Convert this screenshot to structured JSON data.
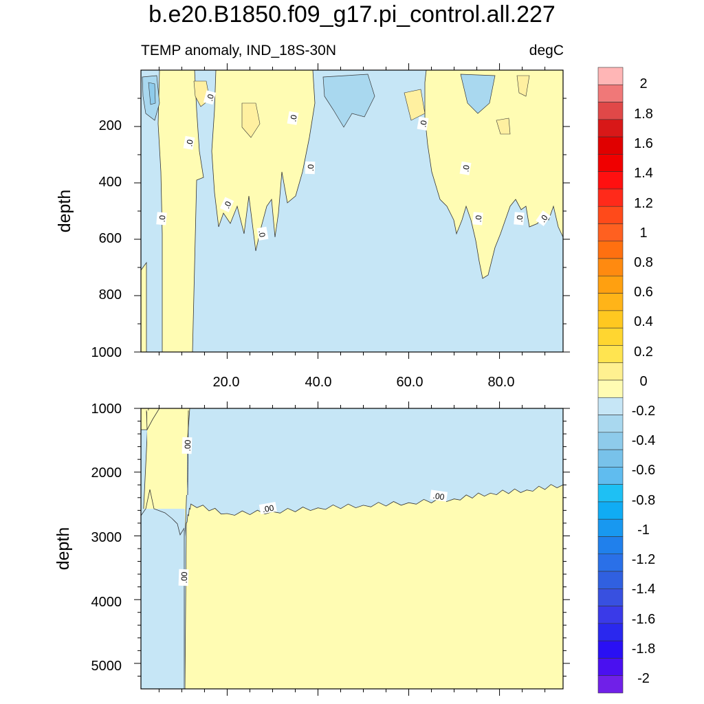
{
  "title": "b.e20.B1850.f09_g17.pi_control.all.227",
  "subtitle_left": "TEMP anomaly, IND_18S-30N",
  "subtitle_right": "degC",
  "colors": {
    "pos_0_0.1": "#fffcb3",
    "neg_0_-0.1": "#c6e6f6",
    "neg_-0.1_-0.2": "#a9d8ef",
    "neg_-0.2_-0.3": "#8ecbeb",
    "pos_0.1_0.2": "#fff0a0",
    "pos_0.2_0.3": "#ffe070"
  },
  "chart_data": [
    {
      "type": "contour",
      "panel": "upper",
      "ylabel": "depth",
      "y_reversed": true,
      "xlim": [
        1,
        94
      ],
      "ylim": [
        0,
        1000
      ],
      "x_ticks": [
        20.0,
        40.0,
        60.0,
        80.0
      ],
      "x_tick_labels": [
        "20.0",
        "40.0",
        "60.0",
        "80.0"
      ],
      "y_ticks": [
        200,
        400,
        600,
        800,
        1000
      ],
      "y_tick_labels": [
        "200",
        "400",
        "600",
        "800",
        "1000"
      ],
      "contour_labels": [
        ".0",
        ".0",
        ".0",
        ".0",
        ".0",
        ".0",
        ".0",
        ".0",
        ".0",
        ".0",
        ".0",
        ".0",
        ".0"
      ],
      "regions": [
        {
          "sign": "positive",
          "x_range": [
            1,
            2.5
          ],
          "depth_range": [
            690,
            1000
          ]
        },
        {
          "sign": "positive",
          "x_range": [
            4,
            12
          ],
          "depth_range": [
            0,
            1000
          ]
        },
        {
          "sign": "positive",
          "x_range": [
            18,
            38
          ],
          "depth_range": [
            0,
            650
          ]
        },
        {
          "sign": "positive",
          "x_range": [
            64,
            94
          ],
          "depth_range": [
            0,
            760
          ]
        }
      ]
    },
    {
      "type": "contour",
      "panel": "lower",
      "ylabel": "depth",
      "y_reversed": true,
      "xlim": [
        1,
        94
      ],
      "ylim": [
        1000,
        5400
      ],
      "y_ticks": [
        1000,
        2000,
        3000,
        4000,
        5000
      ],
      "y_tick_labels": [
        "1000",
        "2000",
        "3000",
        "4000",
        "5000"
      ],
      "contour_labels": [
        ".00",
        ".00",
        ".00",
        ".00"
      ],
      "zero_contour_depth": [
        {
          "x": 1,
          "depth": 2650
        },
        {
          "x": 2,
          "depth": 2550
        },
        {
          "x": 3,
          "depth": 2300
        },
        {
          "x": 6,
          "depth": 2550
        },
        {
          "x": 9,
          "depth": 2800
        },
        {
          "x": 10,
          "depth": 2950
        },
        {
          "x": 11,
          "depth": 2800
        },
        {
          "x": 12,
          "depth": 2500
        },
        {
          "x": 20,
          "depth": 2650
        },
        {
          "x": 30,
          "depth": 2620
        },
        {
          "x": 40,
          "depth": 2560
        },
        {
          "x": 50,
          "depth": 2520
        },
        {
          "x": 60,
          "depth": 2480
        },
        {
          "x": 70,
          "depth": 2420
        },
        {
          "x": 78,
          "depth": 2330
        },
        {
          "x": 86,
          "depth": 2280
        },
        {
          "x": 94,
          "depth": 2200
        }
      ]
    }
  ],
  "colorbar": {
    "labels": [
      "2",
      "1.8",
      "1.6",
      "1.4",
      "1.2",
      "1",
      "0.8",
      "0.6",
      "0.4",
      "0.2",
      "0",
      "-0.2",
      "-0.4",
      "-0.6",
      "-0.8",
      "-1",
      "-1.2",
      "-1.4",
      "-1.6",
      "-1.8",
      "-2"
    ],
    "colors": [
      "#ffb6b6",
      "#f07878",
      "#e04848",
      "#d81818",
      "#e00000",
      "#f00000",
      "#ff1010",
      "#ff2a1a",
      "#ff4a1a",
      "#ff6020",
      "#ff7010",
      "#ff8a10",
      "#ffa010",
      "#ffb418",
      "#ffc820",
      "#ffd630",
      "#ffe450",
      "#fff090",
      "#fffcb3",
      "#c6e6f6",
      "#a9d8ef",
      "#8ecbeb",
      "#78c2ea",
      "#60bcef",
      "#1ec0f4",
      "#10acf4",
      "#1898f0",
      "#2080ec",
      "#2a70e8",
      "#3060e0",
      "#3850e0",
      "#3a3ae8",
      "#2a28ee",
      "#2a10f4",
      "#4a10f0",
      "#7020e8"
    ]
  }
}
